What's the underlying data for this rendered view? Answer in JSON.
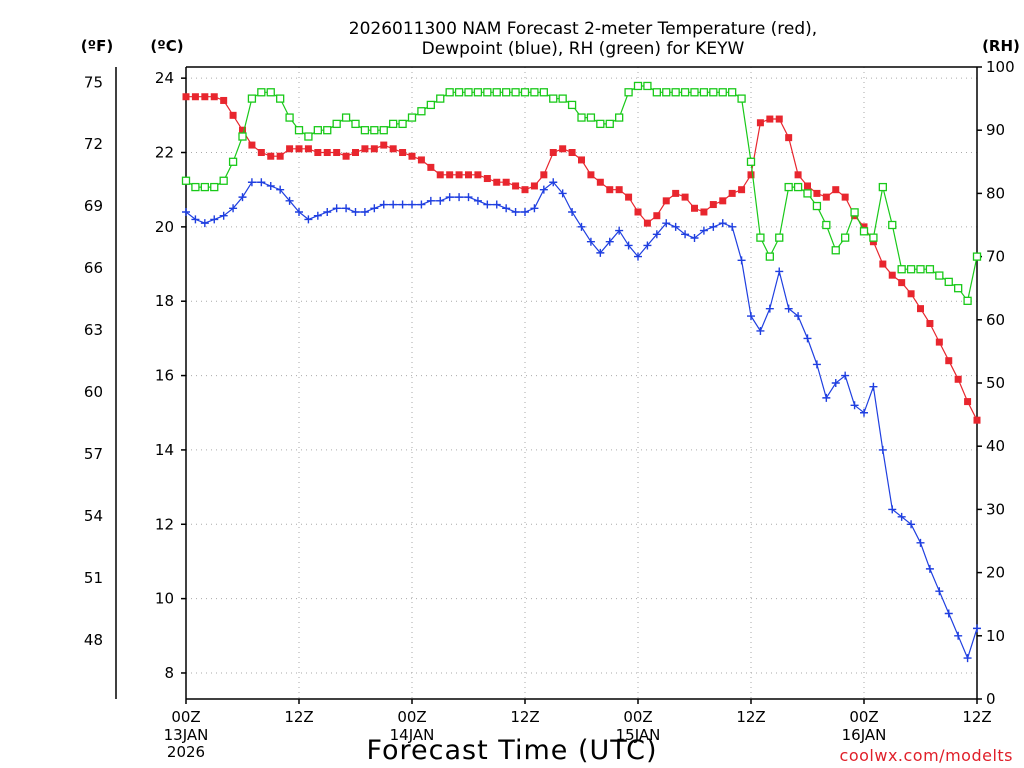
{
  "chart_data": {
    "type": "line",
    "title_line1": "2026011300 NAM Forecast 2-meter Temperature (red),",
    "title_line2": "Dewpoint (blue), RH (green) for KEYW",
    "xlabel": "Forecast Time (UTC)",
    "credit": "coolwx.com/modelts",
    "units": {
      "fahrenheit": "(ºF)",
      "celsius": "(ºC)",
      "rh": "(RH)"
    },
    "xlim": [
      0,
      84
    ],
    "ylim_c": [
      7.3,
      24.3
    ],
    "ylim_rh": [
      0,
      100
    ],
    "x_ticks": [
      {
        "hour": 0,
        "label": "00Z",
        "date": "13JAN",
        "year": "2026"
      },
      {
        "hour": 12,
        "label": "12Z",
        "date": "",
        "year": ""
      },
      {
        "hour": 24,
        "label": "00Z",
        "date": "14JAN",
        "year": ""
      },
      {
        "hour": 36,
        "label": "12Z",
        "date": "",
        "year": ""
      },
      {
        "hour": 48,
        "label": "00Z",
        "date": "15JAN",
        "year": ""
      },
      {
        "hour": 60,
        "label": "12Z",
        "date": "",
        "year": ""
      },
      {
        "hour": 72,
        "label": "00Z",
        "date": "16JAN",
        "year": ""
      },
      {
        "hour": 84,
        "label": "12Z",
        "date": "",
        "year": ""
      }
    ],
    "y_ticks_c": [
      {
        "value": 8,
        "label": "8"
      },
      {
        "value": 10,
        "label": "10"
      },
      {
        "value": 12,
        "label": "12"
      },
      {
        "value": 14,
        "label": "14"
      },
      {
        "value": 16,
        "label": "16"
      },
      {
        "value": 18,
        "label": "18"
      },
      {
        "value": 20,
        "label": "20"
      },
      {
        "value": 22,
        "label": "22"
      },
      {
        "value": 24,
        "label": "24"
      }
    ],
    "y_ticks_f": [
      {
        "value": 48,
        "label": "48"
      },
      {
        "value": 51,
        "label": "51"
      },
      {
        "value": 54,
        "label": "54"
      },
      {
        "value": 57,
        "label": "57"
      },
      {
        "value": 60,
        "label": "60"
      },
      {
        "value": 63,
        "label": "63"
      },
      {
        "value": 66,
        "label": "66"
      },
      {
        "value": 69,
        "label": "69"
      },
      {
        "value": 72,
        "label": "72"
      },
      {
        "value": 75,
        "label": "75"
      }
    ],
    "y_ticks_rh": [
      {
        "value": 0,
        "label": "0"
      },
      {
        "value": 10,
        "label": "10"
      },
      {
        "value": 20,
        "label": "20"
      },
      {
        "value": 30,
        "label": "30"
      },
      {
        "value": 40,
        "label": "40"
      },
      {
        "value": 50,
        "label": "50"
      },
      {
        "value": 60,
        "label": "60"
      },
      {
        "value": 70,
        "label": "70"
      },
      {
        "value": 80,
        "label": "80"
      },
      {
        "value": 90,
        "label": "90"
      },
      {
        "value": 100,
        "label": "100"
      }
    ],
    "series": [
      {
        "name": "Temperature (C)",
        "color": "#e8262e",
        "marker": "filled-square",
        "axis": "celsius",
        "x": [
          0,
          1,
          2,
          3,
          4,
          5,
          6,
          7,
          8,
          9,
          10,
          11,
          12,
          13,
          14,
          15,
          16,
          17,
          18,
          19,
          20,
          21,
          22,
          23,
          24,
          25,
          26,
          27,
          28,
          29,
          30,
          31,
          32,
          33,
          34,
          35,
          36,
          37,
          38,
          39,
          40,
          41,
          42,
          43,
          44,
          45,
          46,
          47,
          48,
          49,
          50,
          51,
          52,
          53,
          54,
          55,
          56,
          57,
          58,
          59,
          60,
          61,
          62,
          63,
          64,
          65,
          66,
          67,
          68,
          69,
          70,
          71,
          72,
          73,
          74,
          75,
          76,
          77,
          78,
          79,
          80,
          81,
          82,
          83,
          84
        ],
        "values": [
          23.5,
          23.5,
          23.5,
          23.5,
          23.4,
          23.0,
          22.6,
          22.2,
          22.0,
          21.9,
          21.9,
          22.1,
          22.1,
          22.1,
          22.0,
          22.0,
          22.0,
          21.9,
          22.0,
          22.1,
          22.1,
          22.2,
          22.1,
          22.0,
          21.9,
          21.8,
          21.6,
          21.4,
          21.4,
          21.4,
          21.4,
          21.4,
          21.3,
          21.2,
          21.2,
          21.1,
          21.0,
          21.1,
          21.4,
          22.0,
          22.1,
          22.0,
          21.8,
          21.4,
          21.2,
          21.0,
          21.0,
          20.8,
          20.4,
          20.1,
          20.3,
          20.7,
          20.9,
          20.8,
          20.5,
          20.4,
          20.6,
          20.7,
          20.9,
          21.0,
          21.4,
          22.8,
          22.9,
          22.9,
          22.4,
          21.4,
          21.1,
          20.9,
          20.8,
          21.0,
          20.8,
          20.3,
          20.0,
          19.6,
          19.0,
          18.7,
          18.5,
          18.2,
          17.8,
          17.4,
          16.9,
          16.4,
          15.9,
          15.3,
          14.8
        ]
      },
      {
        "name": "Dewpoint (C)",
        "color": "#1f3fe0",
        "marker": "plus",
        "axis": "celsius",
        "x": [
          0,
          1,
          2,
          3,
          4,
          5,
          6,
          7,
          8,
          9,
          10,
          11,
          12,
          13,
          14,
          15,
          16,
          17,
          18,
          19,
          20,
          21,
          22,
          23,
          24,
          25,
          26,
          27,
          28,
          29,
          30,
          31,
          32,
          33,
          34,
          35,
          36,
          37,
          38,
          39,
          40,
          41,
          42,
          43,
          44,
          45,
          46,
          47,
          48,
          49,
          50,
          51,
          52,
          53,
          54,
          55,
          56,
          57,
          58,
          59,
          60,
          61,
          62,
          63,
          64,
          65,
          66,
          67,
          68,
          69,
          70,
          71,
          72,
          73,
          74,
          75,
          76,
          77,
          78,
          79,
          80,
          81,
          82,
          83,
          84
        ],
        "values": [
          20.4,
          20.2,
          20.1,
          20.2,
          20.3,
          20.5,
          20.8,
          21.2,
          21.2,
          21.1,
          21.0,
          20.7,
          20.4,
          20.2,
          20.3,
          20.4,
          20.5,
          20.5,
          20.4,
          20.4,
          20.5,
          20.6,
          20.6,
          20.6,
          20.6,
          20.6,
          20.7,
          20.7,
          20.8,
          20.8,
          20.8,
          20.7,
          20.6,
          20.6,
          20.5,
          20.4,
          20.4,
          20.5,
          21.0,
          21.2,
          20.9,
          20.4,
          20.0,
          19.6,
          19.3,
          19.6,
          19.9,
          19.5,
          19.2,
          19.5,
          19.8,
          20.1,
          20.0,
          19.8,
          19.7,
          19.9,
          20.0,
          20.1,
          20.0,
          19.1,
          17.6,
          17.2,
          17.8,
          18.8,
          17.8,
          17.6,
          17.0,
          16.3,
          15.4,
          15.8,
          16.0,
          15.2,
          15.0,
          15.7,
          14.0,
          12.4,
          12.2,
          12.0,
          11.5,
          10.8,
          10.2,
          9.6,
          9.0,
          8.4,
          9.2
        ]
      },
      {
        "name": "RH (%)",
        "color": "#19c919",
        "marker": "open-square",
        "axis": "rh",
        "x": [
          0,
          1,
          2,
          3,
          4,
          5,
          6,
          7,
          8,
          9,
          10,
          11,
          12,
          13,
          14,
          15,
          16,
          17,
          18,
          19,
          20,
          21,
          22,
          23,
          24,
          25,
          26,
          27,
          28,
          29,
          30,
          31,
          32,
          33,
          34,
          35,
          36,
          37,
          38,
          39,
          40,
          41,
          42,
          43,
          44,
          45,
          46,
          47,
          48,
          49,
          50,
          51,
          52,
          53,
          54,
          55,
          56,
          57,
          58,
          59,
          60,
          61,
          62,
          63,
          64,
          65,
          66,
          67,
          68,
          69,
          70,
          71,
          72,
          73,
          74,
          75,
          76,
          77,
          78,
          79,
          80,
          81,
          82,
          83,
          84
        ],
        "values": [
          82,
          81,
          81,
          81,
          82,
          85,
          89,
          95,
          96,
          96,
          95,
          92,
          90,
          89,
          90,
          90,
          91,
          92,
          91,
          90,
          90,
          90,
          91,
          91,
          92,
          93,
          94,
          95,
          96,
          96,
          96,
          96,
          96,
          96,
          96,
          96,
          96,
          96,
          96,
          95,
          95,
          94,
          92,
          92,
          91,
          91,
          92,
          96,
          97,
          97,
          96,
          96,
          96,
          96,
          96,
          96,
          96,
          96,
          96,
          95,
          85,
          73,
          70,
          73,
          81,
          81,
          80,
          78,
          75,
          71,
          73,
          77,
          74,
          73,
          81,
          75,
          68,
          68,
          68,
          68,
          67,
          66,
          65,
          63,
          70
        ]
      }
    ]
  }
}
